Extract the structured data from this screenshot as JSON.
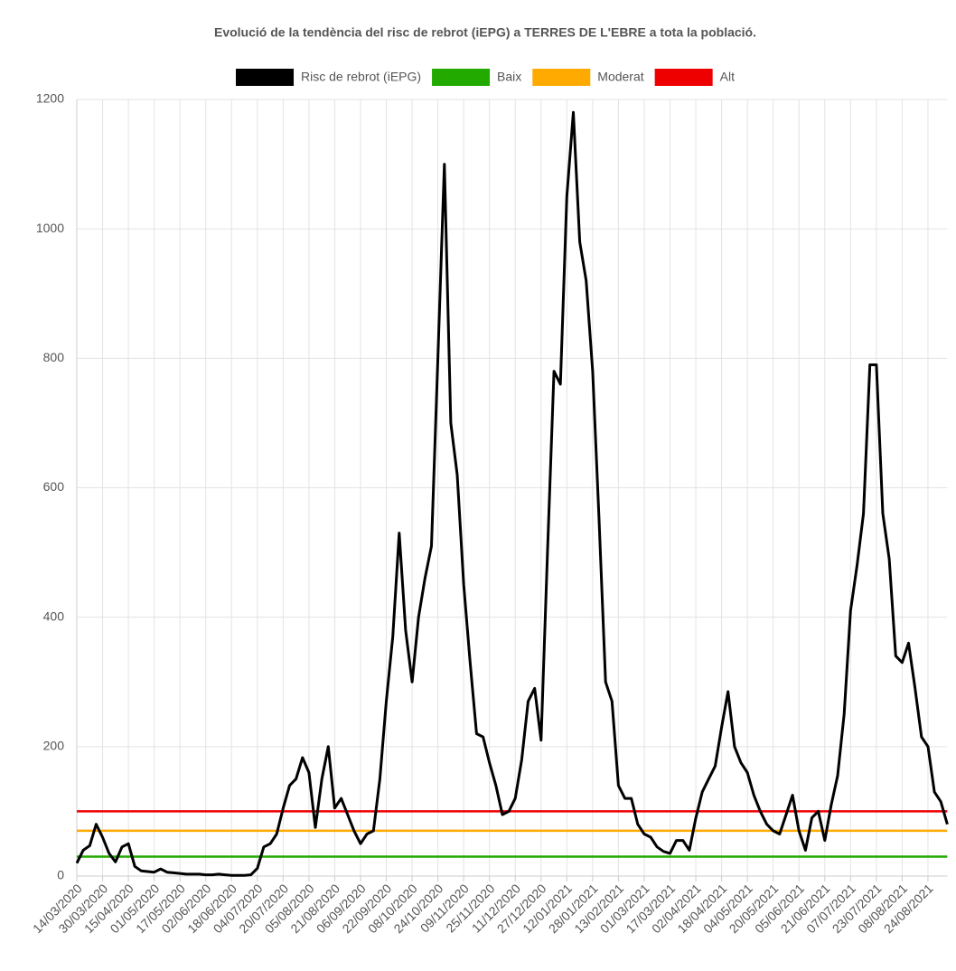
{
  "chart_data": {
    "type": "line",
    "title": "Evolució de la tendència del risc de rebrot (iEPG) a TERRES DE L'EBRE a tota la població.",
    "categories": [
      "14/03/2020",
      null,
      null,
      null,
      "30/03/2020",
      null,
      null,
      null,
      "15/04/2020",
      null,
      null,
      null,
      "01/05/2020",
      null,
      null,
      null,
      "17/05/2020",
      null,
      null,
      null,
      "02/06/2020",
      null,
      null,
      null,
      "18/06/2020",
      null,
      null,
      null,
      "04/07/2020",
      null,
      null,
      null,
      "20/07/2020",
      null,
      null,
      null,
      "05/08/2020",
      null,
      null,
      null,
      "21/08/2020",
      null,
      null,
      null,
      "06/09/2020",
      null,
      null,
      null,
      "22/09/2020",
      null,
      null,
      null,
      "08/10/2020",
      null,
      null,
      null,
      "24/10/2020",
      null,
      null,
      null,
      "09/11/2020",
      null,
      null,
      null,
      "25/11/2020",
      null,
      null,
      null,
      "11/12/2020",
      null,
      null,
      null,
      "27/12/2020",
      null,
      null,
      null,
      "12/01/2021",
      null,
      null,
      null,
      "28/01/2021",
      null,
      null,
      null,
      "13/02/2021",
      null,
      null,
      null,
      "01/03/2021",
      null,
      null,
      null,
      "17/03/2021",
      null,
      null,
      null,
      "02/04/2021",
      null,
      null,
      null,
      "18/04/2021",
      null,
      null,
      null,
      "04/05/2021",
      null,
      null,
      null,
      "20/05/2021",
      null,
      null,
      null,
      "05/06/2021",
      null,
      null,
      null,
      "21/06/2021",
      null,
      null,
      null,
      "07/07/2021",
      null,
      null,
      null,
      "23/07/2021",
      null,
      null,
      null,
      "08/08/2021",
      null,
      null,
      null,
      "24/08/2021",
      null,
      null,
      null
    ],
    "series": [
      {
        "name": "Risc de rebrot (iEPG)",
        "color": "#000000",
        "values": [
          20,
          40,
          47,
          80,
          60,
          35,
          22,
          45,
          50,
          15,
          8,
          7,
          6,
          11,
          6,
          5,
          4,
          3,
          3,
          3,
          2,
          2,
          3,
          2,
          1,
          1,
          1,
          2,
          12,
          45,
          50,
          65,
          105,
          140,
          150,
          183,
          160,
          75,
          150,
          200,
          105,
          120,
          95,
          70,
          50,
          65,
          70,
          150,
          270,
          370,
          530,
          380,
          300,
          400,
          460,
          510,
          800,
          1100,
          700,
          620,
          450,
          330,
          220,
          215,
          175,
          140,
          95,
          100,
          120,
          180,
          270,
          290,
          210,
          500,
          780,
          760,
          1050,
          1180,
          980,
          920,
          780,
          550,
          300,
          270,
          140,
          120,
          120,
          80,
          65,
          60,
          45,
          38,
          35,
          55,
          55,
          40,
          90,
          130,
          150,
          170,
          230,
          285,
          200,
          175,
          160,
          125,
          100,
          80,
          70,
          65,
          95,
          125,
          70,
          40,
          90,
          100,
          55,
          110,
          155,
          250,
          410,
          480,
          560,
          790,
          790,
          560,
          490,
          340,
          330,
          360,
          290,
          215,
          200,
          130,
          115,
          80
        ]
      }
    ],
    "thresholds": [
      {
        "name": "Baix",
        "color": "#22aa00",
        "value": 30
      },
      {
        "name": "Moderat",
        "color": "#ffaa00",
        "value": 70
      },
      {
        "name": "Alt",
        "color": "#ee0000",
        "value": 100
      }
    ],
    "ylim": [
      0,
      1200
    ],
    "yticks": [
      0,
      200,
      400,
      600,
      800,
      1000,
      1200
    ],
    "grid": true
  }
}
